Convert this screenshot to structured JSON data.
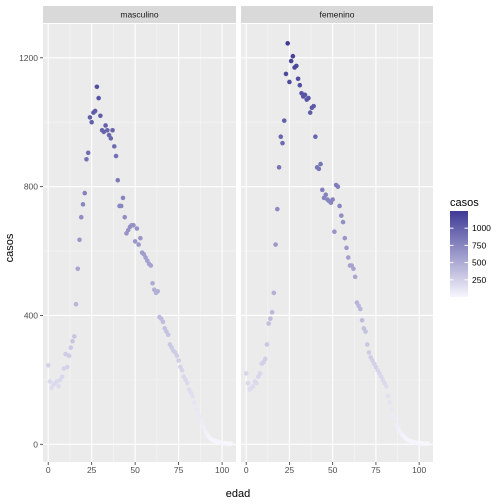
{
  "chart_data": {
    "type": "scatter",
    "xlabel": "edad",
    "ylabel": "casos",
    "xlim": [
      -3,
      108
    ],
    "ylim": [
      -55,
      1305
    ],
    "x_ticks": [
      0,
      25,
      50,
      75,
      100
    ],
    "y_ticks": [
      0,
      400,
      800,
      1200
    ],
    "x_tick_labels": [
      "0",
      "25",
      "50",
      "75",
      "100"
    ],
    "y_tick_labels": [
      "0",
      "400",
      "800",
      "1200"
    ],
    "grid": true,
    "legend": {
      "title": "casos",
      "position": "right",
      "breaks": [
        250,
        500,
        750,
        1000
      ],
      "labels": [
        "250",
        "500",
        "750",
        "1000"
      ],
      "range": [
        0,
        1250
      ]
    },
    "colors": {
      "low": "#f7f6fd",
      "high": "#3f3b96"
    },
    "facets": [
      {
        "label": "masculino",
        "x": [
          0,
          1,
          2,
          3,
          4,
          5,
          6,
          7,
          8,
          9,
          10,
          11,
          12,
          13,
          14,
          15,
          16,
          17,
          18,
          19,
          20,
          21,
          22,
          23,
          24,
          25,
          26,
          27,
          28,
          29,
          30,
          31,
          32,
          33,
          34,
          35,
          36,
          37,
          38,
          39,
          40,
          41,
          42,
          43,
          44,
          45,
          46,
          47,
          48,
          49,
          50,
          51,
          52,
          53,
          54,
          55,
          56,
          57,
          58,
          59,
          60,
          61,
          62,
          63,
          64,
          65,
          66,
          67,
          68,
          69,
          70,
          71,
          72,
          73,
          74,
          75,
          76,
          77,
          78,
          79,
          80,
          81,
          82,
          83,
          84,
          85,
          86,
          87,
          88,
          89,
          90,
          91,
          92,
          93,
          94,
          95,
          96,
          97,
          98,
          99,
          100,
          101,
          102,
          103,
          104,
          105
        ],
        "y": [
          245,
          195,
          175,
          185,
          190,
          195,
          180,
          200,
          210,
          235,
          280,
          240,
          275,
          300,
          320,
          335,
          435,
          545,
          635,
          705,
          745,
          780,
          885,
          905,
          1015,
          1000,
          1030,
          1035,
          1110,
          1075,
          1020,
          975,
          970,
          990,
          975,
          960,
          950,
          975,
          925,
          895,
          820,
          740,
          740,
          765,
          705,
          655,
          665,
          675,
          680,
          680,
          630,
          670,
          620,
          640,
          595,
          590,
          580,
          570,
          560,
          555,
          500,
          480,
          470,
          475,
          395,
          390,
          380,
          360,
          350,
          340,
          310,
          300,
          290,
          285,
          275,
          260,
          240,
          230,
          210,
          200,
          190,
          170,
          160,
          150,
          130,
          110,
          95,
          85,
          70,
          55,
          45,
          35,
          25,
          20,
          15,
          12,
          10,
          8,
          6,
          5,
          4,
          3,
          3,
          2,
          2,
          2
        ]
      },
      {
        "label": "femenino",
        "x": [
          0,
          1,
          2,
          3,
          4,
          5,
          6,
          7,
          8,
          9,
          10,
          11,
          12,
          13,
          14,
          15,
          16,
          17,
          18,
          19,
          20,
          21,
          22,
          23,
          24,
          25,
          26,
          27,
          28,
          29,
          30,
          31,
          32,
          33,
          34,
          35,
          36,
          37,
          38,
          39,
          40,
          41,
          42,
          43,
          44,
          45,
          46,
          47,
          48,
          49,
          50,
          51,
          52,
          53,
          54,
          55,
          56,
          57,
          58,
          59,
          60,
          61,
          62,
          63,
          64,
          65,
          66,
          67,
          68,
          69,
          70,
          71,
          72,
          73,
          74,
          75,
          76,
          77,
          78,
          79,
          80,
          81,
          82,
          83,
          84,
          85,
          86,
          87,
          88,
          89,
          90,
          91,
          92,
          93,
          94,
          95,
          96,
          97,
          98,
          99,
          100,
          101,
          102,
          103,
          104,
          105
        ],
        "y": [
          220,
          190,
          170,
          175,
          180,
          195,
          190,
          210,
          220,
          250,
          255,
          265,
          310,
          375,
          390,
          410,
          470,
          620,
          730,
          860,
          955,
          935,
          1005,
          1150,
          1245,
          1125,
          1190,
          1205,
          1170,
          1175,
          1135,
          1115,
          1090,
          1080,
          1085,
          1070,
          1075,
          1030,
          1045,
          1050,
          955,
          860,
          855,
          870,
          790,
          765,
          775,
          760,
          755,
          750,
          760,
          660,
          805,
          800,
          740,
          710,
          690,
          640,
          610,
          580,
          555,
          555,
          545,
          520,
          440,
          430,
          420,
          385,
          360,
          350,
          310,
          285,
          270,
          260,
          250,
          240,
          230,
          220,
          210,
          200,
          190,
          180,
          150,
          130,
          110,
          90,
          80,
          60,
          50,
          40,
          30,
          25,
          20,
          15,
          12,
          10,
          8,
          6,
          5,
          4,
          3,
          3,
          2,
          2,
          2,
          2
        ]
      }
    ]
  }
}
